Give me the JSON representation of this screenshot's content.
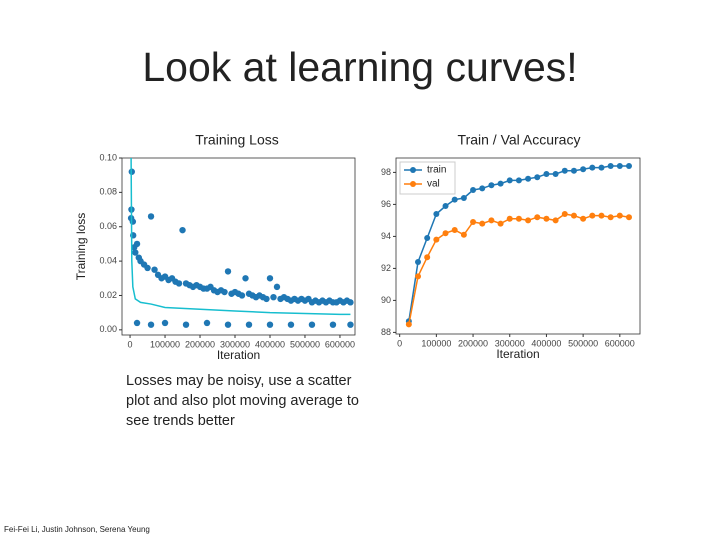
{
  "title": "Look at learning curves!",
  "caption": "Losses may be noisy, use a scatter plot and also plot moving average to see trends better",
  "footer": "Fei-Fei Li, Justin Johnson, Serena Yeung",
  "chart_data": [
    {
      "type": "scatter",
      "title": "Training Loss",
      "xlabel": "Iteration",
      "ylabel": "Training loss",
      "xlim": [
        -23000,
        643000
      ],
      "ylim": [
        -0.003,
        0.1
      ],
      "xticks": [
        0,
        100000,
        200000,
        300000,
        400000,
        500000,
        600000
      ],
      "yticks": [
        {
          "value": 0,
          "label": "0.00"
        },
        0.02,
        0.04,
        0.06,
        0.08,
        {
          "value": 0.1,
          "label": "0.10"
        }
      ],
      "series": [
        {
          "color": "#1f77b4",
          "x": [
            3000,
            4000,
            5000,
            8000,
            9000,
            12000,
            15000,
            20000,
            25000,
            30000,
            40000,
            50000,
            60000,
            70000,
            80000,
            90000,
            100000,
            110000,
            120000,
            130000,
            140000,
            150000,
            160000,
            170000,
            180000,
            190000,
            200000,
            210000,
            220000,
            230000,
            240000,
            250000,
            260000,
            270000,
            280000,
            290000,
            300000,
            310000,
            320000,
            330000,
            340000,
            350000,
            360000,
            370000,
            380000,
            390000,
            400000,
            410000,
            420000,
            430000,
            440000,
            450000,
            460000,
            470000,
            480000,
            490000,
            500000,
            510000,
            520000,
            530000,
            540000,
            550000,
            560000,
            570000,
            580000,
            590000,
            600000,
            610000,
            620000,
            630000,
            20000,
            60000,
            100000,
            160000,
            220000,
            280000,
            340000,
            400000,
            460000,
            520000,
            580000,
            630000
          ],
          "values": [
            0.065,
            0.07,
            0.092,
            0.063,
            0.055,
            0.048,
            0.045,
            0.05,
            0.042,
            0.04,
            0.038,
            0.036,
            0.066,
            0.035,
            0.032,
            0.03,
            0.031,
            0.029,
            0.03,
            0.028,
            0.027,
            0.058,
            0.027,
            0.026,
            0.025,
            0.026,
            0.025,
            0.024,
            0.024,
            0.025,
            0.023,
            0.022,
            0.023,
            0.022,
            0.034,
            0.021,
            0.022,
            0.021,
            0.02,
            0.03,
            0.021,
            0.02,
            0.019,
            0.02,
            0.019,
            0.018,
            0.03,
            0.019,
            0.025,
            0.018,
            0.019,
            0.018,
            0.017,
            0.018,
            0.017,
            0.018,
            0.017,
            0.018,
            0.016,
            0.017,
            0.016,
            0.017,
            0.016,
            0.017,
            0.016,
            0.016,
            0.017,
            0.016,
            0.017,
            0.016,
            0.004,
            0.003,
            0.004,
            0.003,
            0.004,
            0.003,
            0.003,
            0.003,
            0.003,
            0.003,
            0.003,
            0.003
          ]
        },
        {
          "type": "line",
          "color": "#17becf",
          "x": [
            3000,
            5000,
            8000,
            15000,
            30000,
            60000,
            100000,
            150000,
            200000,
            300000,
            400000,
            500000,
            600000,
            630000
          ],
          "values": [
            0.1,
            0.04,
            0.025,
            0.018,
            0.016,
            0.015,
            0.013,
            0.0125,
            0.012,
            0.011,
            0.01,
            0.0095,
            0.009,
            0.009
          ]
        }
      ]
    },
    {
      "type": "line",
      "title": "Train / Val Accuracy",
      "xlabel": "Iteration",
      "xlim": [
        -10000,
        655000
      ],
      "ylim": [
        87.9,
        98.9
      ],
      "xticks": [
        0,
        100000,
        200000,
        300000,
        400000,
        500000,
        600000
      ],
      "yticks": [
        88,
        90,
        92,
        94,
        96,
        98
      ],
      "legend": "upper left",
      "x": [
        25000,
        50000,
        75000,
        100000,
        125000,
        150000,
        175000,
        200000,
        225000,
        250000,
        275000,
        300000,
        325000,
        350000,
        375000,
        400000,
        425000,
        450000,
        475000,
        500000,
        525000,
        550000,
        575000,
        600000,
        625000
      ],
      "series": [
        {
          "name": "train",
          "color": "#1f77b4",
          "values": [
            88.7,
            92.4,
            93.9,
            95.4,
            95.9,
            96.3,
            96.4,
            96.9,
            97.0,
            97.2,
            97.3,
            97.5,
            97.5,
            97.6,
            97.7,
            97.9,
            97.9,
            98.1,
            98.1,
            98.2,
            98.3,
            98.3,
            98.4,
            98.4,
            98.4
          ]
        },
        {
          "name": "val",
          "color": "#ff7f0e",
          "values": [
            88.5,
            91.5,
            92.7,
            93.8,
            94.2,
            94.4,
            94.1,
            94.9,
            94.8,
            95.0,
            94.8,
            95.1,
            95.1,
            95.0,
            95.2,
            95.1,
            95.0,
            95.4,
            95.3,
            95.1,
            95.3,
            95.3,
            95.2,
            95.3,
            95.2
          ]
        }
      ]
    }
  ]
}
